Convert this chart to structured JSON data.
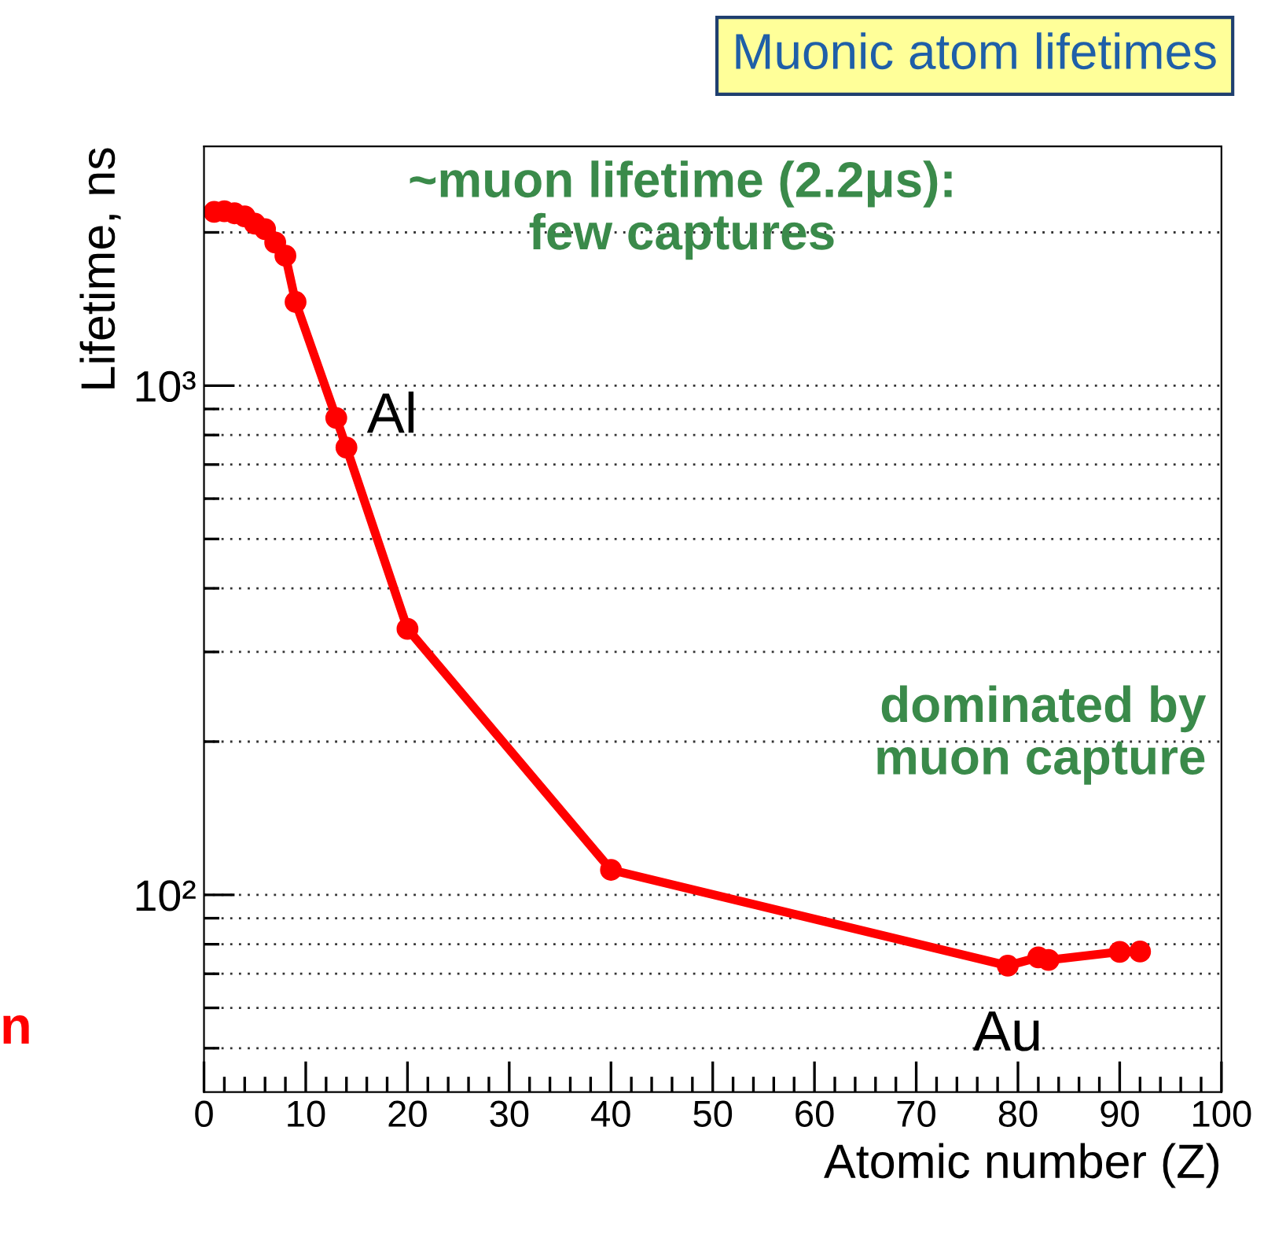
{
  "chart_data": {
    "type": "line",
    "title": "Muonic atom lifetimes",
    "xlabel": "Atomic number (Z)",
    "ylabel": "Lifetime, ns",
    "series": [
      {
        "color": "#ff0000",
        "x": [
          1,
          2,
          3,
          4,
          5,
          6,
          7,
          8,
          9,
          13,
          14,
          20,
          40,
          79,
          82,
          83,
          90,
          92
        ],
        "values": [
          2194,
          2200,
          2180,
          2150,
          2080,
          2030,
          1910,
          1800,
          1460,
          864,
          756,
          333,
          112,
          72.6,
          75.4,
          74.5,
          77.3,
          77.4
        ]
      }
    ],
    "log": "y",
    "xlim": [
      0,
      100
    ],
    "ylim": [
      41,
      2950
    ],
    "xticks": [
      0,
      {
        "value": 2,
        "label": null
      },
      {
        "value": 4,
        "label": null
      },
      {
        "value": 6,
        "label": null
      },
      {
        "value": 8,
        "label": null
      },
      10,
      {
        "value": 12,
        "label": null
      },
      {
        "value": 14,
        "label": null
      },
      {
        "value": 16,
        "label": null
      },
      {
        "value": 18,
        "label": null
      },
      20,
      {
        "value": 22,
        "label": null
      },
      {
        "value": 24,
        "label": null
      },
      {
        "value": 26,
        "label": null
      },
      {
        "value": 28,
        "label": null
      },
      30,
      {
        "value": 32,
        "label": null
      },
      {
        "value": 34,
        "label": null
      },
      {
        "value": 36,
        "label": null
      },
      {
        "value": 38,
        "label": null
      },
      40,
      {
        "value": 42,
        "label": null
      },
      {
        "value": 44,
        "label": null
      },
      {
        "value": 46,
        "label": null
      },
      {
        "value": 48,
        "label": null
      },
      50,
      {
        "value": 52,
        "label": null
      },
      {
        "value": 54,
        "label": null
      },
      {
        "value": 56,
        "label": null
      },
      {
        "value": 58,
        "label": null
      },
      60,
      {
        "value": 62,
        "label": null
      },
      {
        "value": 64,
        "label": null
      },
      {
        "value": 66,
        "label": null
      },
      {
        "value": 68,
        "label": null
      },
      70,
      {
        "value": 72,
        "label": null
      },
      {
        "value": 74,
        "label": null
      },
      {
        "value": 76,
        "label": null
      },
      {
        "value": 78,
        "label": null
      },
      80,
      {
        "value": 82,
        "label": null
      },
      {
        "value": 84,
        "label": null
      },
      {
        "value": 86,
        "label": null
      },
      {
        "value": 88,
        "label": null
      },
      90,
      {
        "value": 92,
        "label": null
      },
      {
        "value": 94,
        "label": null
      },
      {
        "value": 96,
        "label": null
      },
      {
        "value": 98,
        "label": null
      },
      100
    ],
    "yticks": [
      {
        "value": 50,
        "label": null
      },
      {
        "value": 60,
        "label": null
      },
      {
        "value": 70,
        "label": null
      },
      {
        "value": 80,
        "label": null
      },
      {
        "value": 90,
        "label": null
      },
      {
        "value": 100,
        "label": "10²"
      },
      {
        "value": 200,
        "label": null
      },
      {
        "value": 300,
        "label": null
      },
      {
        "value": 400,
        "label": null
      },
      {
        "value": 500,
        "label": null
      },
      {
        "value": 600,
        "label": null
      },
      {
        "value": 700,
        "label": null
      },
      {
        "value": 800,
        "label": null
      },
      {
        "value": 900,
        "label": null
      },
      {
        "value": 1000,
        "label": "10³"
      },
      {
        "value": 2000,
        "label": null
      }
    ],
    "grid": "y",
    "marker": "circle",
    "line_style": "solid",
    "legend": false,
    "annotations": [
      "~muon lifetime (2.2μs):\nfew captures",
      "dominated by\nmuon capture",
      {
        "text": "Al",
        "x": 13,
        "y": 864
      },
      {
        "text": "Au",
        "x": 79,
        "y": 72.6
      },
      "n"
    ]
  }
}
